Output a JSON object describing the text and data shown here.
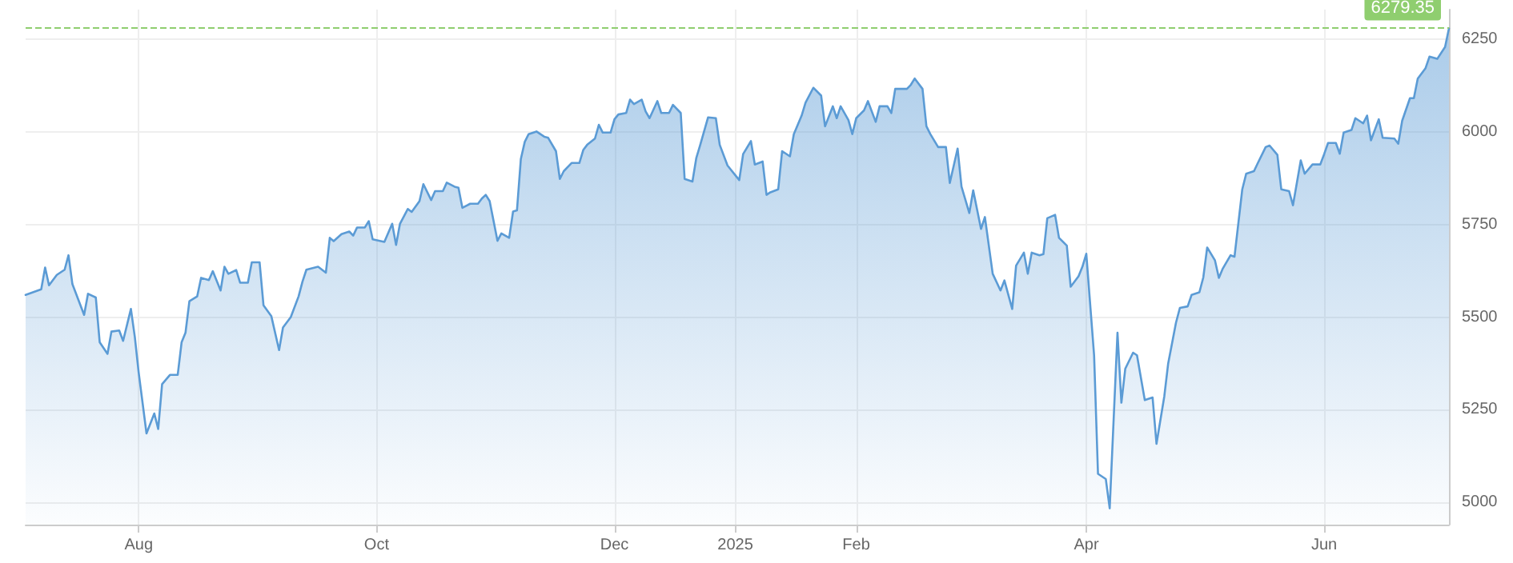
{
  "chart_data": {
    "type": "area",
    "color": "#5b9bd5",
    "grid": true,
    "marker": "none",
    "line_style": "solid",
    "x": [
      "2024-07-03",
      "2024-07-07",
      "2024-07-08",
      "2024-07-09",
      "2024-07-11",
      "2024-07-13",
      "2024-07-14",
      "2024-07-15",
      "2024-07-18",
      "2024-07-19",
      "2024-07-21",
      "2024-07-22",
      "2024-07-24",
      "2024-07-25",
      "2024-07-27",
      "2024-07-28",
      "2024-07-30",
      "2024-07-31",
      "2024-08-01",
      "2024-08-03",
      "2024-08-05",
      "2024-08-06",
      "2024-08-07",
      "2024-08-09",
      "2024-08-11",
      "2024-08-12",
      "2024-08-13",
      "2024-08-14",
      "2024-08-16",
      "2024-08-17",
      "2024-08-19",
      "2024-08-20",
      "2024-08-22",
      "2024-08-23",
      "2024-08-24",
      "2024-08-26",
      "2024-08-27",
      "2024-08-29",
      "2024-08-30",
      "2024-09-01",
      "2024-09-02",
      "2024-09-04",
      "2024-09-06",
      "2024-09-07",
      "2024-09-09",
      "2024-09-11",
      "2024-09-12",
      "2024-09-13",
      "2024-09-16",
      "2024-09-18",
      "2024-09-19",
      "2024-09-20",
      "2024-09-22",
      "2024-09-24",
      "2024-09-25",
      "2024-09-26",
      "2024-09-28",
      "2024-09-29",
      "2024-09-30",
      "2024-10-03",
      "2024-10-05",
      "2024-10-06",
      "2024-10-07",
      "2024-10-09",
      "2024-10-10",
      "2024-10-12",
      "2024-10-13",
      "2024-10-15",
      "2024-10-16",
      "2024-10-18",
      "2024-10-19",
      "2024-10-21",
      "2024-10-22",
      "2024-10-23",
      "2024-10-25",
      "2024-10-27",
      "2024-10-28",
      "2024-10-29",
      "2024-10-30",
      "2024-11-01",
      "2024-11-02",
      "2024-11-04",
      "2024-11-05",
      "2024-11-06",
      "2024-11-07",
      "2024-11-08",
      "2024-11-09",
      "2024-11-11",
      "2024-11-13",
      "2024-11-14",
      "2024-11-16",
      "2024-11-17",
      "2024-11-18",
      "2024-11-20",
      "2024-11-22",
      "2024-11-23",
      "2024-11-24",
      "2024-11-26",
      "2024-11-27",
      "2024-11-28",
      "2024-11-30",
      "2024-12-01",
      "2024-12-02",
      "2024-12-04",
      "2024-12-05",
      "2024-12-06",
      "2024-12-08",
      "2024-12-09",
      "2024-12-10",
      "2024-12-12",
      "2024-12-13",
      "2024-12-15",
      "2024-12-16",
      "2024-12-18",
      "2024-12-19",
      "2024-12-21",
      "2024-12-22",
      "2024-12-23",
      "2024-12-25",
      "2024-12-27",
      "2024-12-28",
      "2024-12-30",
      "2025-01-01",
      "2025-01-02",
      "2025-01-03",
      "2025-01-05",
      "2025-01-06",
      "2025-01-08",
      "2025-01-09",
      "2025-01-10",
      "2025-01-12",
      "2025-01-13",
      "2025-01-15",
      "2025-01-16",
      "2025-01-18",
      "2025-01-19",
      "2025-01-21",
      "2025-01-23",
      "2025-01-24",
      "2025-01-26",
      "2025-01-27",
      "2025-01-28",
      "2025-01-30",
      "2025-01-31",
      "2025-02-01",
      "2025-02-03",
      "2025-02-04",
      "2025-02-06",
      "2025-02-07",
      "2025-02-09",
      "2025-02-10",
      "2025-02-11",
      "2025-02-14",
      "2025-02-15",
      "2025-02-16",
      "2025-02-18",
      "2025-02-19",
      "2025-02-20",
      "2025-02-22",
      "2025-02-24",
      "2025-02-25",
      "2025-02-27",
      "2025-02-28",
      "2025-03-02",
      "2025-03-03",
      "2025-03-05",
      "2025-03-06",
      "2025-03-08",
      "2025-03-10",
      "2025-03-11",
      "2025-03-13",
      "2025-03-14",
      "2025-03-16",
      "2025-03-17",
      "2025-03-18",
      "2025-03-20",
      "2025-03-21",
      "2025-03-22",
      "2025-03-24",
      "2025-03-25",
      "2025-03-27",
      "2025-03-28",
      "2025-03-30",
      "2025-03-31",
      "2025-04-01",
      "2025-04-03",
      "2025-04-04",
      "2025-04-06",
      "2025-04-07",
      "2025-04-09",
      "2025-04-10",
      "2025-04-11",
      "2025-04-13",
      "2025-04-14",
      "2025-04-16",
      "2025-04-18",
      "2025-04-19",
      "2025-04-21",
      "2025-04-22",
      "2025-04-24",
      "2025-04-25",
      "2025-04-27",
      "2025-04-28",
      "2025-04-30",
      "2025-05-01",
      "2025-05-02",
      "2025-05-04",
      "2025-05-05",
      "2025-05-06",
      "2025-05-08",
      "2025-05-09",
      "2025-05-11",
      "2025-05-12",
      "2025-05-14",
      "2025-05-15",
      "2025-05-17",
      "2025-05-18",
      "2025-05-20",
      "2025-05-21",
      "2025-05-23",
      "2025-05-24",
      "2025-05-26",
      "2025-05-27",
      "2025-05-29",
      "2025-05-31",
      "2025-06-01",
      "2025-06-02",
      "2025-06-04",
      "2025-06-05",
      "2025-06-06",
      "2025-06-08",
      "2025-06-09",
      "2025-06-11",
      "2025-06-12",
      "2025-06-13",
      "2025-06-15",
      "2025-06-16",
      "2025-06-19",
      "2025-06-20",
      "2025-06-21",
      "2025-06-23",
      "2025-06-24",
      "2025-06-25",
      "2025-06-27",
      "2025-06-28",
      "2025-06-30",
      "2025-07-02",
      "2025-07-03"
    ],
    "values": [
      5560,
      5575,
      5634,
      5586,
      5614,
      5628,
      5667,
      5589,
      5506,
      5563,
      5553,
      5432,
      5401,
      5461,
      5464,
      5436,
      5522,
      5447,
      5350,
      5186,
      5240,
      5198,
      5319,
      5344,
      5344,
      5432,
      5458,
      5543,
      5556,
      5606,
      5600,
      5624,
      5572,
      5636,
      5617,
      5627,
      5593,
      5593,
      5648,
      5648,
      5532,
      5503,
      5411,
      5472,
      5500,
      5556,
      5596,
      5628,
      5636,
      5620,
      5714,
      5705,
      5724,
      5731,
      5720,
      5742,
      5742,
      5759,
      5710,
      5703,
      5752,
      5695,
      5752,
      5792,
      5784,
      5813,
      5859,
      5816,
      5840,
      5840,
      5863,
      5852,
      5849,
      5795,
      5806,
      5806,
      5820,
      5830,
      5813,
      5706,
      5726,
      5714,
      5785,
      5788,
      5927,
      5973,
      5994,
      6001,
      5987,
      5984,
      5948,
      5873,
      5894,
      5916,
      5916,
      5951,
      5965,
      5982,
      6019,
      5998,
      5998,
      6034,
      6047,
      6051,
      6087,
      6075,
      6087,
      6055,
      6037,
      6083,
      6051,
      6051,
      6073,
      6051,
      5873,
      5866,
      5930,
      5965,
      6039,
      6037,
      5965,
      5909,
      5883,
      5870,
      5940,
      5975,
      5912,
      5920,
      5830,
      5837,
      5845,
      5948,
      5934,
      5994,
      6044,
      6079,
      6119,
      6098,
      6015,
      6069,
      6037,
      6069,
      6032,
      5994,
      6037,
      6058,
      6083,
      6027,
      6069,
      6069,
      6051,
      6116,
      6116,
      6127,
      6144,
      6116,
      6015,
      5994,
      5959,
      5959,
      5862,
      5955,
      5852,
      5781,
      5842,
      5738,
      5770,
      5617,
      5572,
      5599,
      5522,
      5639,
      5674,
      5617,
      5674,
      5667,
      5670,
      5767,
      5776,
      5714,
      5693,
      5582,
      5610,
      5636,
      5671,
      5397,
      5077,
      5063,
      4984,
      5458,
      5269,
      5361,
      5404,
      5397,
      5276,
      5283,
      5158,
      5286,
      5375,
      5485,
      5525,
      5529,
      5560,
      5567,
      5607,
      5688,
      5653,
      5606,
      5631,
      5667,
      5663,
      5845,
      5887,
      5894,
      5916,
      5959,
      5963,
      5938,
      5845,
      5840,
      5802,
      5923,
      5887,
      5912,
      5912,
      5940,
      5970,
      5970,
      5941,
      5998,
      6005,
      6037,
      6023,
      6044,
      5977,
      6034,
      5984,
      5982,
      5968,
      6030,
      6091,
      6091,
      6144,
      6172,
      6203,
      6197,
      6229,
      6279.35
    ],
    "xlim": [
      "2024-07-03",
      "2025-07-03"
    ],
    "xticks": [
      {
        "value": "2024-08-01",
        "label": "Aug"
      },
      {
        "value": "2024-10-01",
        "label": "Oct"
      },
      {
        "value": "2024-12-01",
        "label": "Dec"
      },
      {
        "value": "2025-01-01",
        "label": "2025"
      },
      {
        "value": "2025-02-01",
        "label": "Feb"
      },
      {
        "value": "2025-04-01",
        "label": "Apr"
      },
      {
        "value": "2025-06-01",
        "label": "Jun"
      }
    ],
    "ylim": [
      4940,
      6330
    ],
    "yticks": [
      5000,
      5250,
      5500,
      5750,
      6000,
      6250
    ],
    "ref_lines": [
      {
        "axis": "y",
        "value": 6279.35,
        "label": "6279.35",
        "color": "#8fce6f",
        "line_style": "dashed"
      }
    ]
  }
}
